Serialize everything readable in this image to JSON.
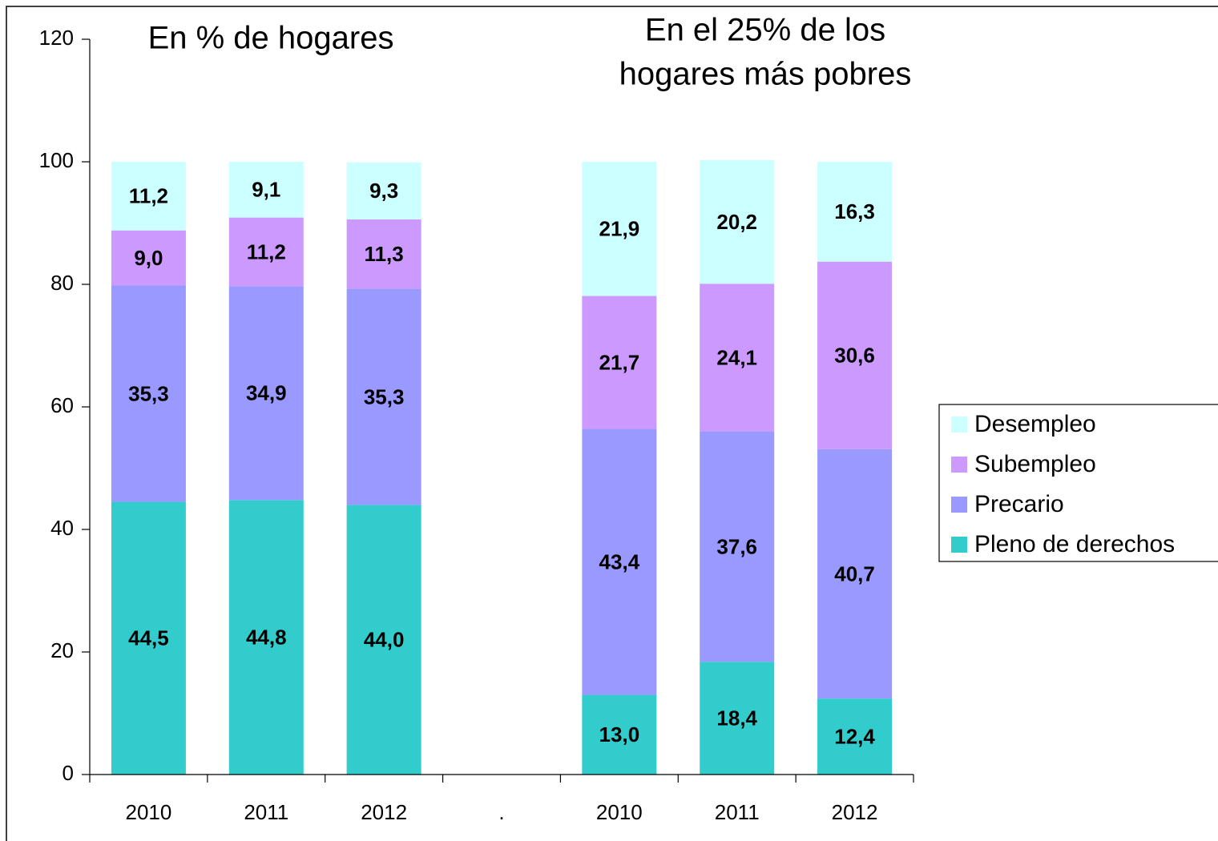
{
  "chart_data": {
    "type": "stacked_bar",
    "annotations": [
      {
        "lines": [
          "En % de hogares"
        ]
      },
      {
        "lines": [
          "En el 25% de los",
          "hogares más pobres"
        ]
      }
    ],
    "categories": [
      "2010",
      "2011",
      "2012",
      ".",
      "2010",
      "2011",
      "2012"
    ],
    "series": [
      {
        "name": "Pleno de derechos",
        "color": "#33cccc",
        "values": [
          44.5,
          44.8,
          44.0,
          null,
          13.0,
          18.4,
          12.4
        ],
        "value_labels": [
          "44,5",
          "44,8",
          "44,0",
          null,
          "13,0",
          "18,4",
          "12,4"
        ]
      },
      {
        "name": "Precario",
        "color": "#9999ff",
        "values": [
          35.3,
          34.9,
          35.3,
          null,
          43.4,
          37.6,
          40.7
        ],
        "value_labels": [
          "35,3",
          "34,9",
          "35,3",
          null,
          "43,4",
          "37,6",
          "40,7"
        ]
      },
      {
        "name": "Subempleo",
        "color": "#cc99ff",
        "values": [
          9.0,
          11.2,
          11.3,
          null,
          21.7,
          24.1,
          30.6
        ],
        "value_labels": [
          "9,0",
          "11,2",
          "11,3",
          null,
          "21,7",
          "24,1",
          "30,6"
        ]
      },
      {
        "name": "Desempleo",
        "color": "#ccffff",
        "values": [
          11.2,
          9.1,
          9.3,
          null,
          21.9,
          20.2,
          16.3
        ],
        "value_labels": [
          "11,2",
          "9,1",
          "9,3",
          null,
          "21,9",
          "20,2",
          "16,3"
        ]
      }
    ],
    "ylim": [
      0,
      120
    ],
    "yticks": [
      0,
      20,
      40,
      60,
      80,
      100,
      120
    ],
    "grid": false,
    "legend": "right"
  }
}
